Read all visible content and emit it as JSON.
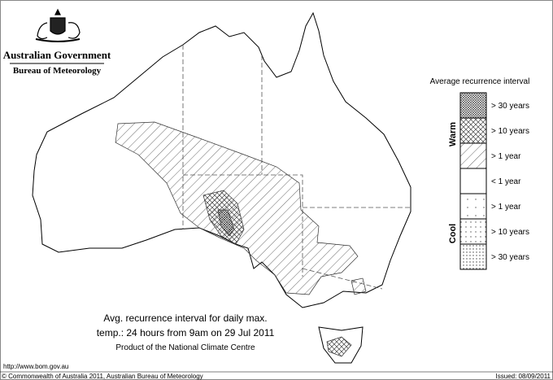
{
  "header": {
    "title": "Australian Government",
    "subtitle": "Bureau of Meteorology"
  },
  "legend": {
    "title": "Average recurrence interval",
    "warm_label": "Warm",
    "cool_label": "Cool",
    "entries": [
      "> 30 years",
      "> 10 years",
      "> 1 year",
      "< 1 year",
      "> 1 year",
      "> 10 years",
      "> 30 years"
    ]
  },
  "caption": {
    "lines": [
      "Avg. recurrence interval for daily max.",
      "temp.: 24 hours from 9am on 29 Jul 2011",
      "Product of the National Climate Centre"
    ]
  },
  "footer": {
    "url": "http://www.bom.gov.au",
    "copyright": "© Commonwealth of Australia 2011, Australian Bureau of Meteorology",
    "issued": "Issued: 08/09/2011"
  }
}
